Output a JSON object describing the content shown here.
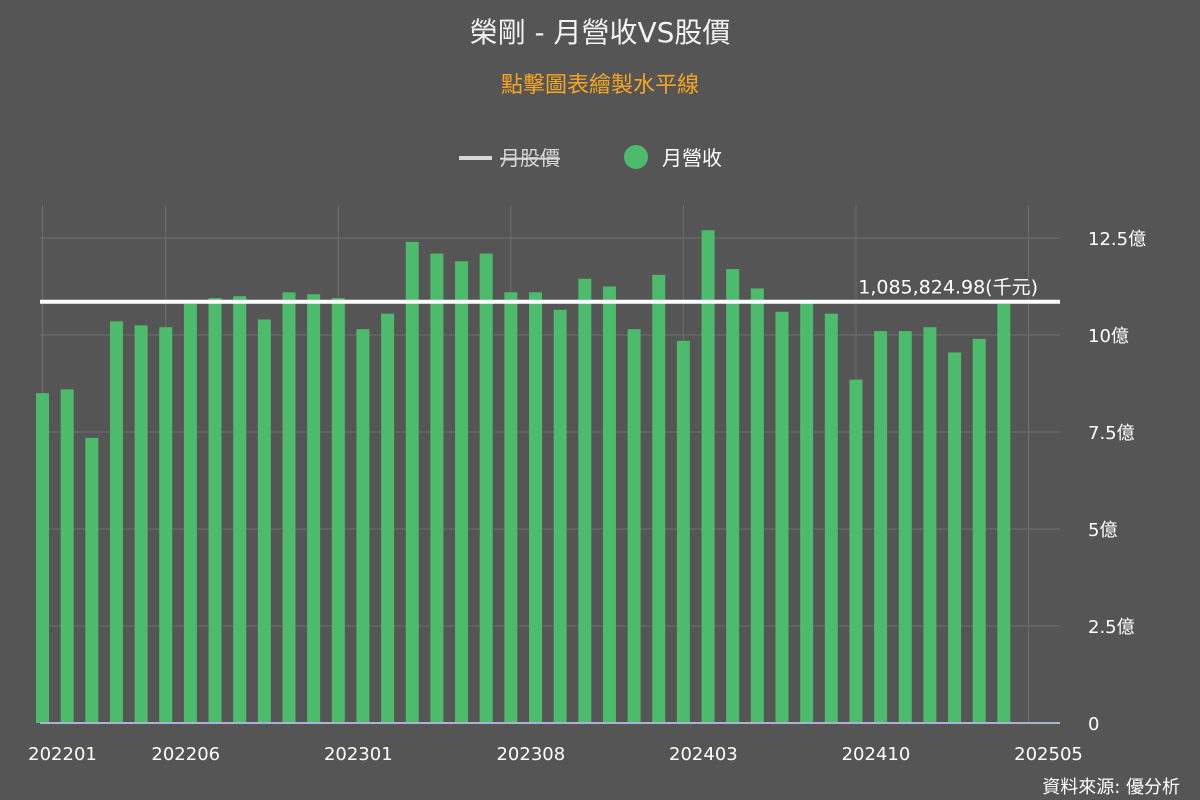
{
  "title": "榮剛 - 月營收VS股價",
  "subtitle": "點擊圖表繪製水平線",
  "legend": [
    {
      "name": "月股價",
      "color": "#d8d8d8",
      "hidden": true
    },
    {
      "name": "月營收",
      "color": "#4cbb6c",
      "hidden": false
    }
  ],
  "horizontal_line_label": "1,085,824.98(千元)",
  "source": "資料來源: 優分析",
  "colors": {
    "background": "#555555",
    "bar": "#4cbb6c",
    "grid": "#6e6e6e",
    "title": "#f2f2f2",
    "subtitle": "#f5a623",
    "hline": "#ffffff"
  },
  "chart_data": {
    "type": "bar",
    "x": [
      "202201",
      "202202",
      "202203",
      "202204",
      "202205",
      "202206",
      "202207",
      "202208",
      "202209",
      "202210",
      "202211",
      "202212",
      "202301",
      "202302",
      "202303",
      "202304",
      "202305",
      "202306",
      "202307",
      "202308",
      "202309",
      "202310",
      "202311",
      "202312",
      "202401",
      "202402",
      "202403",
      "202404",
      "202405",
      "202406",
      "202407",
      "202408",
      "202409",
      "202410",
      "202411",
      "202412",
      "202501",
      "202502",
      "202503",
      "202504"
    ],
    "series": [
      {
        "name": "月營收",
        "unit": "億",
        "values": [
          8.5,
          8.6,
          7.35,
          10.35,
          10.25,
          10.2,
          10.8,
          10.95,
          11.0,
          10.4,
          11.1,
          11.05,
          10.95,
          10.15,
          10.55,
          12.4,
          12.1,
          11.9,
          12.1,
          11.1,
          11.1,
          10.65,
          11.45,
          11.25,
          10.15,
          11.55,
          9.85,
          12.7,
          11.7,
          11.2,
          10.6,
          10.9,
          10.55,
          8.85,
          10.1,
          10.1,
          10.2,
          9.55,
          9.9,
          10.8
        ]
      }
    ],
    "x_tick_labels": [
      "202201",
      "202206",
      "202301",
      "202308",
      "202403",
      "202410",
      "202505"
    ],
    "y_tick_labels": [
      "0",
      "2.5億",
      "5億",
      "7.5億",
      "10億",
      "12.5億"
    ],
    "y_ticks": [
      0,
      2.5,
      5,
      7.5,
      10,
      12.5
    ],
    "ylim": [
      0,
      13.4
    ],
    "horizontal_line_value": 10.858,
    "grid": true,
    "legend_position": "top-center"
  }
}
